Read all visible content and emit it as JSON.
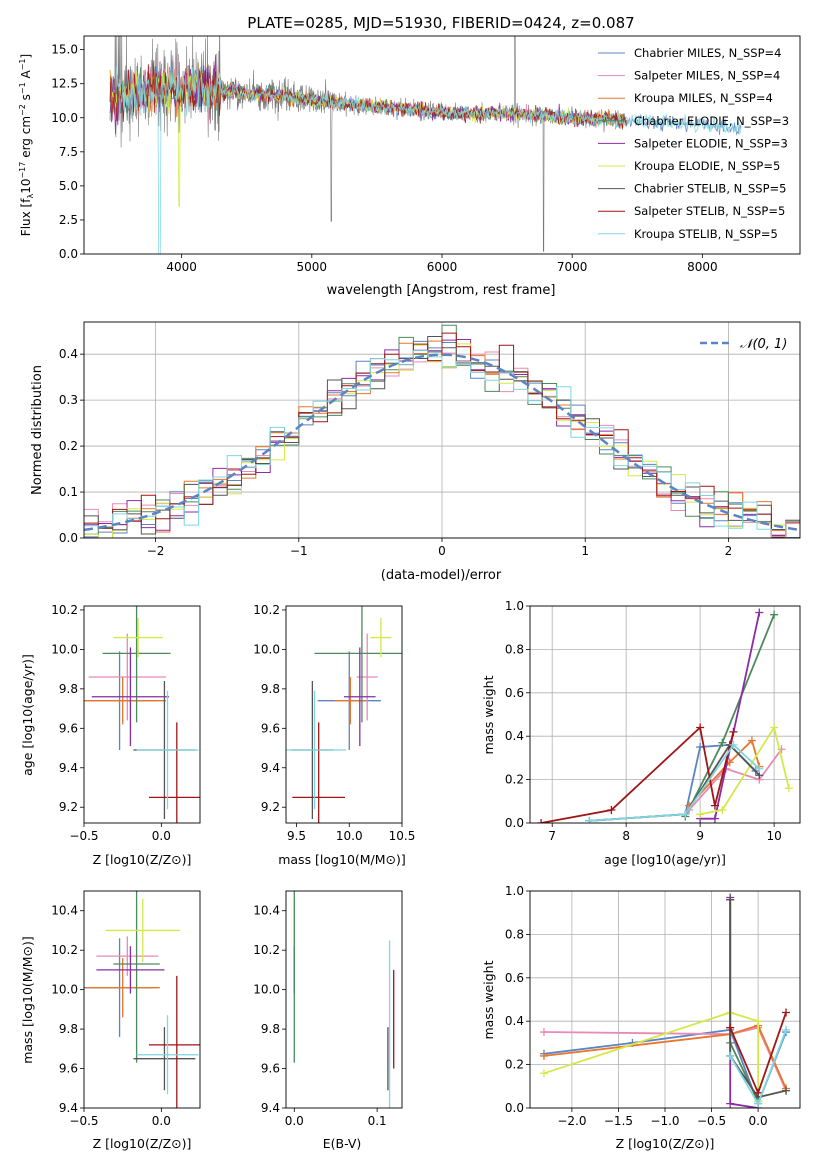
{
  "colors": {
    "chabrier_miles": "#5b84c4",
    "salpeter_miles": "#e88ab4",
    "kroupa_miles": "#e8762d",
    "chabrier_elodie": "#4a8a5c",
    "salpeter_elodie": "#8b2ca5",
    "kroupa_elodie": "#d4e84a",
    "chabrier_stelib": "#555555",
    "salpeter_stelib": "#a01515",
    "kroupa_stelib": "#7ed6e0",
    "normal": "#5b84c4",
    "grid": "#b0b0b0"
  },
  "chart_data": [
    {
      "id": "spectrum",
      "type": "line",
      "title": "PLATE=0285, MJD=51930, FIBERID=0424, z=0.087",
      "xlabel": "wavelength [Angstrom, rest frame]",
      "ylabel": "Flux [fλ10⁻¹⁷ erg cm⁻² s⁻¹ A⁻¹]",
      "xlim": [
        3250,
        8750
      ],
      "ylim": [
        0,
        16
      ],
      "xticks": [
        "4000",
        "5000",
        "6000",
        "7000",
        "8000"
      ],
      "yticks": [
        "0.0",
        "2.5",
        "5.0",
        "7.5",
        "10.0",
        "12.5",
        "15.0"
      ],
      "grid": false,
      "legend_position": "top-right",
      "legend": [
        "Chabrier MILES, N_SSP=4",
        "Salpeter MILES, N_SSP=4",
        "Kroupa MILES, N_SSP=4",
        "Chabrier ELODIE, N_SSP=3",
        "Salpeter ELODIE, N_SSP=3",
        "Kroupa ELODIE, N_SSP=5",
        "Chabrier STELIB, N_SSP=5",
        "Salpeter STELIB, N_SSP=5",
        "Kroupa STELIB, N_SSP=5"
      ],
      "data_trend": {
        "x": [
          3500,
          3750,
          4000,
          4250,
          4500,
          4750,
          5000,
          5250,
          5500,
          5750,
          6000,
          6250,
          6500,
          6750,
          7000,
          7250,
          7500,
          7750,
          8000,
          8250
        ],
        "y": [
          11.5,
          12.0,
          12.2,
          12.0,
          11.8,
          11.6,
          11.3,
          11.0,
          10.8,
          10.6,
          10.4,
          10.3,
          10.3,
          10.2,
          10.0,
          9.9,
          9.8,
          9.6,
          9.5,
          9.3
        ]
      }
    },
    {
      "id": "residuals",
      "type": "line",
      "xlabel": "(data-model)/error",
      "ylabel": "Normed distribution",
      "xlim": [
        -2.5,
        2.5
      ],
      "ylim": [
        0,
        0.47
      ],
      "xticks": [
        "−2",
        "−1",
        "0",
        "1",
        "2"
      ],
      "yticks": [
        "0.0",
        "0.1",
        "0.2",
        "0.3",
        "0.4"
      ],
      "grid": true,
      "legend_position": "top-right",
      "legend": [
        "𝒩(0, 1)"
      ],
      "series_label": "𝒩(0, 1)"
    },
    {
      "id": "age_vs_Z",
      "type": "scatter",
      "xlabel": "Z [log10(Z/Z⊙)]",
      "ylabel": "age  [log10(age/yr)]",
      "xlim": [
        -0.5,
        0.25
      ],
      "ylim": [
        9.12,
        10.22
      ],
      "xticks": [
        "−0.5",
        "0.0"
      ],
      "yticks": [
        "9.2",
        "9.4",
        "9.6",
        "9.8",
        "10.0",
        "10.2"
      ],
      "points": [
        {
          "model": "chabrier_miles",
          "x": -0.27,
          "y": 9.74,
          "xerr": 0.25,
          "yerr": 0.25
        },
        {
          "model": "salpeter_miles",
          "x": -0.22,
          "y": 9.86,
          "xerr": 0.25,
          "yerr": 0.22
        },
        {
          "model": "kroupa_miles",
          "x": -0.25,
          "y": 9.74,
          "xerr": 0.28,
          "yerr": 0.12
        },
        {
          "model": "chabrier_elodie",
          "x": -0.16,
          "y": 9.98,
          "xerr": 0.22,
          "yerr": 0.35
        },
        {
          "model": "salpeter_elodie",
          "x": -0.2,
          "y": 9.76,
          "xerr": 0.25,
          "yerr": 0.25
        },
        {
          "model": "kroupa_elodie",
          "x": -0.15,
          "y": 10.06,
          "xerr": 0.16,
          "yerr": 0.1
        },
        {
          "model": "chabrier_stelib",
          "x": 0.02,
          "y": 9.49,
          "xerr": 0.2,
          "yerr": 0.35
        },
        {
          "model": "salpeter_stelib",
          "x": 0.1,
          "y": 9.25,
          "xerr": 0.18,
          "yerr": 0.38
        },
        {
          "model": "kroupa_stelib",
          "x": 0.04,
          "y": 9.49,
          "xerr": 0.2,
          "yerr": 0.3
        }
      ]
    },
    {
      "id": "age_vs_mass",
      "type": "scatter",
      "xlabel": "mass [log10(M/M⊙)]",
      "xlim": [
        9.4,
        10.5
      ],
      "ylim": [
        9.12,
        10.22
      ],
      "xticks": [
        "9.5",
        "10.0",
        "10.5"
      ],
      "yticks": [
        "9.2",
        "9.4",
        "9.6",
        "9.8",
        "10.0",
        "10.2"
      ],
      "points": [
        {
          "model": "chabrier_miles",
          "x": 10.0,
          "y": 9.74,
          "xerr": 0.3,
          "yerr": 0.25
        },
        {
          "model": "salpeter_miles",
          "x": 10.17,
          "y": 9.86,
          "xerr": 0.1,
          "yerr": 0.22
        },
        {
          "model": "kroupa_miles",
          "x": 10.01,
          "y": 9.74,
          "xerr": 0.15,
          "yerr": 0.12
        },
        {
          "model": "chabrier_elodie",
          "x": 10.12,
          "y": 9.98,
          "xerr": 0.45,
          "yerr": 0.35
        },
        {
          "model": "salpeter_elodie",
          "x": 10.1,
          "y": 9.76,
          "xerr": 0.15,
          "yerr": 0.25
        },
        {
          "model": "kroupa_elodie",
          "x": 10.3,
          "y": 10.06,
          "xerr": 0.1,
          "yerr": 0.1
        },
        {
          "model": "chabrier_stelib",
          "x": 9.65,
          "y": 9.49,
          "xerr": 0.2,
          "yerr": 0.35
        },
        {
          "model": "salpeter_stelib",
          "x": 9.71,
          "y": 9.25,
          "xerr": 0.25,
          "yerr": 0.38
        },
        {
          "model": "kroupa_stelib",
          "x": 9.67,
          "y": 9.49,
          "xerr": 0.3,
          "yerr": 0.3
        }
      ]
    },
    {
      "id": "massweight_vs_age",
      "type": "line",
      "xlabel": "age  [log10(age/yr)]",
      "ylabel": "mass weight",
      "xlim": [
        6.7,
        10.35
      ],
      "ylim": [
        0,
        1.0
      ],
      "xticks": [
        "7",
        "8",
        "9",
        "10"
      ],
      "yticks": [
        "0.0",
        "0.2",
        "0.4",
        "0.6",
        "0.8",
        "1.0"
      ],
      "grid": true,
      "series": [
        {
          "model": "chabrier_miles",
          "x": [
            7.5,
            8.8,
            9.0,
            9.4,
            9.75
          ],
          "y": [
            0.01,
            0.04,
            0.35,
            0.36,
            0.24
          ]
        },
        {
          "model": "salpeter_miles",
          "x": [
            8.85,
            9.35,
            9.8,
            10.1
          ],
          "y": [
            0.06,
            0.25,
            0.2,
            0.34
          ]
        },
        {
          "model": "kroupa_miles",
          "x": [
            8.85,
            9.4,
            9.7,
            9.8
          ],
          "y": [
            0.08,
            0.28,
            0.38,
            0.26
          ]
        },
        {
          "model": "chabrier_elodie",
          "x": [
            8.8,
            9.3,
            10.0
          ],
          "y": [
            0.03,
            0.37,
            0.96
          ]
        },
        {
          "model": "salpeter_elodie",
          "x": [
            9.0,
            9.2,
            9.8
          ],
          "y": [
            0.02,
            0.02,
            0.97
          ]
        },
        {
          "model": "kroupa_elodie",
          "x": [
            9.0,
            9.3,
            10.0,
            10.2
          ],
          "y": [
            0.04,
            0.06,
            0.44,
            0.16
          ]
        },
        {
          "model": "chabrier_stelib",
          "x": [
            7.5,
            8.8,
            9.4,
            9.8
          ],
          "y": [
            0.01,
            0.04,
            0.36,
            0.22
          ]
        },
        {
          "model": "salpeter_stelib",
          "x": [
            6.85,
            7.8,
            9.0,
            9.2,
            9.45
          ],
          "y": [
            0.0,
            0.06,
            0.44,
            0.08,
            0.42
          ]
        },
        {
          "model": "kroupa_stelib",
          "x": [
            7.5,
            8.8,
            9.45,
            9.8
          ],
          "y": [
            0.01,
            0.04,
            0.36,
            0.25
          ]
        }
      ]
    },
    {
      "id": "mass_vs_Z",
      "type": "scatter",
      "xlabel": "Z [log10(Z/Z⊙)]",
      "ylabel": "mass [log10(M/M⊙)]",
      "xlim": [
        -0.5,
        0.25
      ],
      "ylim": [
        9.4,
        10.5
      ],
      "xticks": [
        "−0.5",
        "0.0"
      ],
      "yticks": [
        "9.4",
        "9.6",
        "9.8",
        "10.0",
        "10.2",
        "10.4"
      ],
      "points": [
        {
          "model": "chabrier_miles",
          "x": -0.27,
          "y": 10.01,
          "xerr": 0.23,
          "yerr": 0.25
        },
        {
          "model": "salpeter_miles",
          "x": -0.22,
          "y": 10.17,
          "xerr": 0.2,
          "yerr": 0.1
        },
        {
          "model": "kroupa_miles",
          "x": -0.25,
          "y": 10.01,
          "xerr": 0.24,
          "yerr": 0.15
        },
        {
          "model": "chabrier_elodie",
          "x": -0.16,
          "y": 10.13,
          "xerr": 0.15,
          "yerr": 0.5
        },
        {
          "model": "salpeter_elodie",
          "x": -0.2,
          "y": 10.1,
          "xerr": 0.22,
          "yerr": 0.12
        },
        {
          "model": "kroupa_elodie",
          "x": -0.12,
          "y": 10.3,
          "xerr": 0.24,
          "yerr": 0.16
        },
        {
          "model": "chabrier_stelib",
          "x": 0.02,
          "y": 9.65,
          "xerr": 0.2,
          "yerr": 0.16
        },
        {
          "model": "salpeter_stelib",
          "x": 0.1,
          "y": 9.72,
          "xerr": 0.18,
          "yerr": 0.35
        },
        {
          "model": "kroupa_stelib",
          "x": 0.04,
          "y": 9.67,
          "xerr": 0.2,
          "yerr": 0.2
        }
      ]
    },
    {
      "id": "mass_vs_ebv",
      "type": "scatter",
      "xlabel": "E(B-V)",
      "xlim": [
        -0.01,
        0.13
      ],
      "ylim": [
        9.4,
        10.5
      ],
      "xticks": [
        "0.0",
        "0.1"
      ],
      "yticks": [
        "9.4",
        "9.6",
        "9.8",
        "10.0",
        "10.2",
        "10.4"
      ],
      "points": [
        {
          "model": "kroupa_elodie",
          "x": 0.0,
          "y": 10.3,
          "xerr": 0.0,
          "yerr": 0.16
        },
        {
          "model": "salpeter_elodie",
          "x": 0.0,
          "y": 10.1,
          "xerr": 0.0,
          "yerr": 0.12
        },
        {
          "model": "chabrier_elodie",
          "x": 0.0,
          "y": 10.13,
          "xerr": 0.0,
          "yerr": 0.5
        },
        {
          "model": "kroupa_stelib",
          "x": 0.115,
          "y": 9.8,
          "xerr": 0.0,
          "yerr": 0.45
        },
        {
          "model": "chabrier_stelib",
          "x": 0.113,
          "y": 9.65,
          "xerr": 0.0,
          "yerr": 0.16
        },
        {
          "model": "salpeter_stelib",
          "x": 0.12,
          "y": 9.85,
          "xerr": 0.0,
          "yerr": 0.25
        }
      ]
    },
    {
      "id": "massweight_vs_Z",
      "type": "line",
      "xlabel": "Z [log10(Z/Z⊙)]",
      "ylabel": "mass weight",
      "xlim": [
        -2.45,
        0.45
      ],
      "ylim": [
        0,
        1.0
      ],
      "xticks": [
        "−2.0",
        "−1.5",
        "−1.0",
        "−0.5",
        "0.0"
      ],
      "yticks": [
        "0.0",
        "0.2",
        "0.4",
        "0.6",
        "0.8",
        "1.0"
      ],
      "grid": true,
      "series": [
        {
          "model": "chabrier_miles",
          "x": [
            -2.3,
            -1.35,
            -0.3,
            0.0,
            0.3
          ],
          "y": [
            0.25,
            0.3,
            0.36,
            0.02,
            0.35
          ]
        },
        {
          "model": "salpeter_miles",
          "x": [
            -2.3,
            -0.3,
            0.0,
            0.3
          ],
          "y": [
            0.35,
            0.34,
            0.37,
            0.08
          ]
        },
        {
          "model": "kroupa_miles",
          "x": [
            -2.3,
            -0.3,
            0.0,
            0.3
          ],
          "y": [
            0.24,
            0.34,
            0.38,
            0.09
          ]
        },
        {
          "model": "chabrier_elodie",
          "x": [
            -0.3,
            -0.3,
            0.0
          ],
          "y": [
            0.96,
            0.3,
            0.03
          ]
        },
        {
          "model": "salpeter_elodie",
          "x": [
            -0.3,
            -0.3,
            0.0
          ],
          "y": [
            0.97,
            0.02,
            0.0
          ]
        },
        {
          "model": "kroupa_elodie",
          "x": [
            -2.3,
            -0.3,
            0.0,
            0.0
          ],
          "y": [
            0.16,
            0.44,
            0.4,
            0.03
          ]
        },
        {
          "model": "chabrier_stelib",
          "x": [
            -0.3,
            -0.3,
            0.0,
            0.3
          ],
          "y": [
            0.96,
            0.24,
            0.05,
            0.08
          ]
        },
        {
          "model": "salpeter_stelib",
          "x": [
            -0.3,
            0.0,
            0.3
          ],
          "y": [
            0.37,
            0.07,
            0.44
          ]
        },
        {
          "model": "kroupa_stelib",
          "x": [
            -0.3,
            0.0,
            0.3
          ],
          "y": [
            0.24,
            0.02,
            0.36
          ]
        }
      ]
    }
  ]
}
